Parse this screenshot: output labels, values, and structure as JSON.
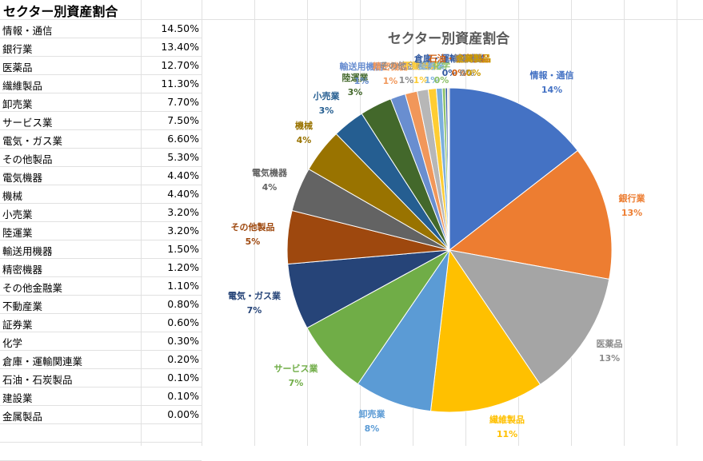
{
  "sheet": {
    "title": "セクター別資産割合",
    "rows": [
      {
        "name": "情報・通信",
        "pct": "14.50%"
      },
      {
        "name": "銀行業",
        "pct": "13.40%"
      },
      {
        "name": "医薬品",
        "pct": "12.70%"
      },
      {
        "name": "繊維製品",
        "pct": "11.30%"
      },
      {
        "name": "卸売業",
        "pct": "7.70%"
      },
      {
        "name": "サービス業",
        "pct": "7.50%"
      },
      {
        "name": "電気・ガス業",
        "pct": "6.60%"
      },
      {
        "name": "その他製品",
        "pct": "5.30%"
      },
      {
        "name": "電気機器",
        "pct": "4.40%"
      },
      {
        "name": "機械",
        "pct": "4.40%"
      },
      {
        "name": "小売業",
        "pct": "3.20%"
      },
      {
        "name": "陸運業",
        "pct": "3.20%"
      },
      {
        "name": "輸送用機器",
        "pct": "1.50%"
      },
      {
        "name": "精密機器",
        "pct": "1.20%"
      },
      {
        "name": "その他金融業",
        "pct": "1.10%"
      },
      {
        "name": "不動産業",
        "pct": "0.80%"
      },
      {
        "name": "証券業",
        "pct": "0.60%"
      },
      {
        "name": "化学",
        "pct": "0.30%"
      },
      {
        "name": "倉庫・運輸関連業",
        "pct": "0.20%"
      },
      {
        "name": "石油・石炭製品",
        "pct": "0.10%"
      },
      {
        "name": "建設業",
        "pct": "0.10%"
      },
      {
        "name": "金属製品",
        "pct": "0.00%"
      }
    ]
  },
  "chart_data": {
    "type": "pie",
    "title": "セクター別資産割合",
    "categories": [
      "情報・通信",
      "銀行業",
      "医薬品",
      "繊維製品",
      "卸売業",
      "サービス業",
      "電気・ガス業",
      "その他製品",
      "電気機器",
      "機械",
      "小売業",
      "陸運業",
      "輸送用機器",
      "精密機器",
      "その他金融業",
      "不動産業",
      "証券業",
      "化学",
      "倉庫・運輸関連業",
      "石油・石炭製品",
      "建設業",
      "金属製品"
    ],
    "values": [
      14.5,
      13.4,
      12.7,
      11.3,
      7.7,
      7.5,
      6.6,
      5.3,
      4.4,
      4.4,
      3.2,
      3.2,
      1.5,
      1.2,
      1.1,
      0.8,
      0.6,
      0.3,
      0.2,
      0.1,
      0.1,
      0.0
    ],
    "data_labels": [
      "14%",
      "13%",
      "13%",
      "11%",
      "8%",
      "7%",
      "7%",
      "5%",
      "4%",
      "4%",
      "3%",
      "3%",
      "1%",
      "1%",
      "1%",
      "1%",
      "1%",
      "0%",
      "0%",
      "0%",
      "0%",
      "0%"
    ],
    "colors": [
      "#4472C4",
      "#ED7D31",
      "#A5A5A5",
      "#FFC000",
      "#5B9BD5",
      "#70AD47",
      "#264478",
      "#9E480E",
      "#636363",
      "#997300",
      "#255E91",
      "#43682B",
      "#698ED0",
      "#F1975A",
      "#B7B7B7",
      "#FFCD33",
      "#7CAFDD",
      "#8CC168",
      "#335AA1",
      "#D26012",
      "#848484",
      "#CC9A00"
    ],
    "start_angle_deg": 0,
    "direction": "clockwise",
    "legend": "none"
  }
}
